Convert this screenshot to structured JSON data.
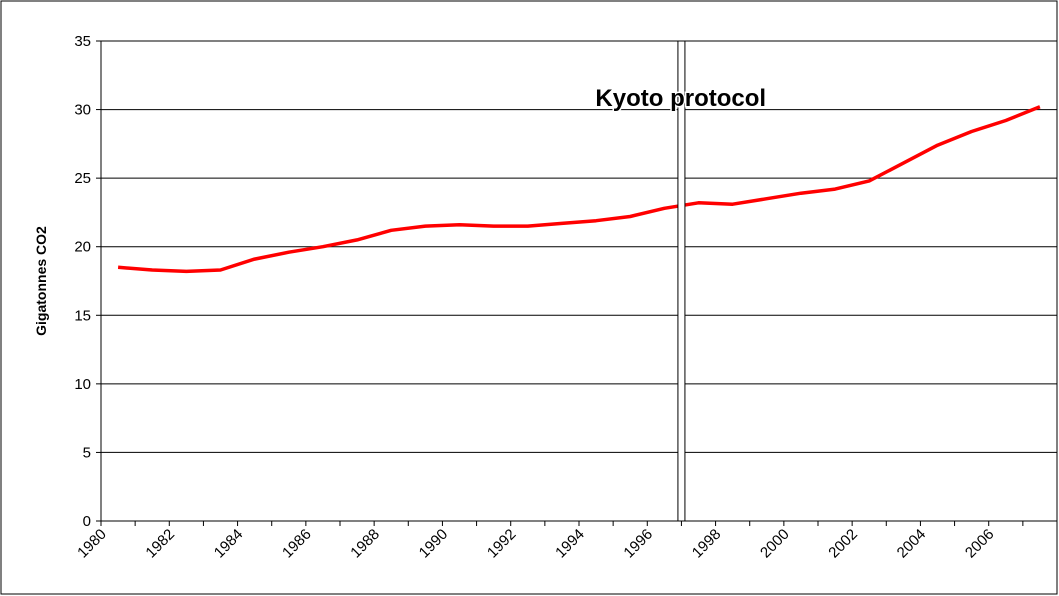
{
  "chart_data": {
    "type": "line",
    "ylabel": "Gigatonnes CO2",
    "categories": [
      "1980",
      null,
      "1982",
      null,
      "1984",
      null,
      "1986",
      null,
      "1988",
      null,
      "1990",
      null,
      "1992",
      null,
      "1994",
      null,
      "1996",
      null,
      "1998",
      null,
      "2000",
      null,
      "2002",
      null,
      "2004",
      null,
      "2006",
      null
    ],
    "series": [
      {
        "name": "CO2",
        "color": "#ff0000",
        "values": [
          18.5,
          18.3,
          18.2,
          18.3,
          19.1,
          19.6,
          20.0,
          20.5,
          21.2,
          21.5,
          21.6,
          21.5,
          21.5,
          21.7,
          21.9,
          22.2,
          22.8,
          23.2,
          23.1,
          23.5,
          23.9,
          24.2,
          24.8,
          26.1,
          27.4,
          28.4,
          29.2,
          30.2
        ]
      }
    ],
    "ylim": [
      0,
      35
    ],
    "yticks": [
      0,
      5,
      10,
      15,
      20,
      25,
      30,
      35
    ],
    "grid": true,
    "annotation": {
      "text": "Kyoto protocol",
      "x": 1997
    }
  }
}
